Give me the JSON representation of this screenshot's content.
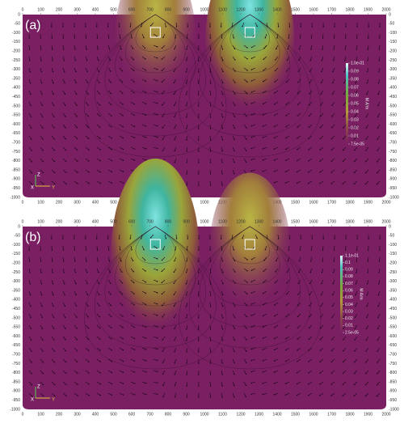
{
  "panels": [
    {
      "label": "(a)",
      "x_ticks": [
        "0",
        "100",
        "200",
        "300",
        "400",
        "500",
        "600",
        "700",
        "800",
        "900",
        "1000",
        "1100",
        "1200",
        "1300",
        "1400",
        "1500",
        "1600",
        "1700",
        "1800",
        "1900",
        "2000"
      ],
      "y_ticks": [
        "0",
        "-50",
        "-100",
        "-150",
        "-200",
        "-250",
        "-300",
        "-350",
        "-400",
        "-450",
        "-500",
        "-550",
        "-600",
        "-650",
        "-700",
        "-750",
        "-800",
        "-850",
        "-900",
        "-950",
        "-1000"
      ],
      "colorbar": {
        "title": "M A/m",
        "ticks": [
          "1.0e-01",
          "0.09",
          "0.08",
          "0.07",
          "0.06",
          "0.05",
          "0.04",
          "0.03",
          "0.02",
          "0.01",
          "7.5e-05"
        ]
      },
      "triad": [
        "Z",
        "X",
        "Y"
      ]
    },
    {
      "label": "(b)",
      "x_ticks": [
        "0",
        "100",
        "200",
        "300",
        "400",
        "500",
        "600",
        "700",
        "800",
        "900",
        "1000",
        "1100",
        "1200",
        "1300",
        "1400",
        "1500",
        "1600",
        "1700",
        "1800",
        "1900",
        "2000"
      ],
      "y_ticks": [
        "0",
        "-50",
        "-100",
        "-150",
        "-200",
        "-250",
        "-300",
        "-350",
        "-400",
        "-450",
        "-500",
        "-550",
        "-600",
        "-650",
        "-700",
        "-750",
        "-800",
        "-850",
        "-900",
        "-950",
        "-1000"
      ],
      "colorbar": {
        "title": "M A/m",
        "ticks": [
          "1.1e-01",
          "0.1",
          "0.09",
          "0.08",
          "0.07",
          "0.06",
          "0.05",
          "0.04",
          "0.03",
          "0.02",
          "0.01",
          "2.5e-05"
        ]
      },
      "triad": [
        "Z",
        "X",
        "Y"
      ]
    }
  ]
}
